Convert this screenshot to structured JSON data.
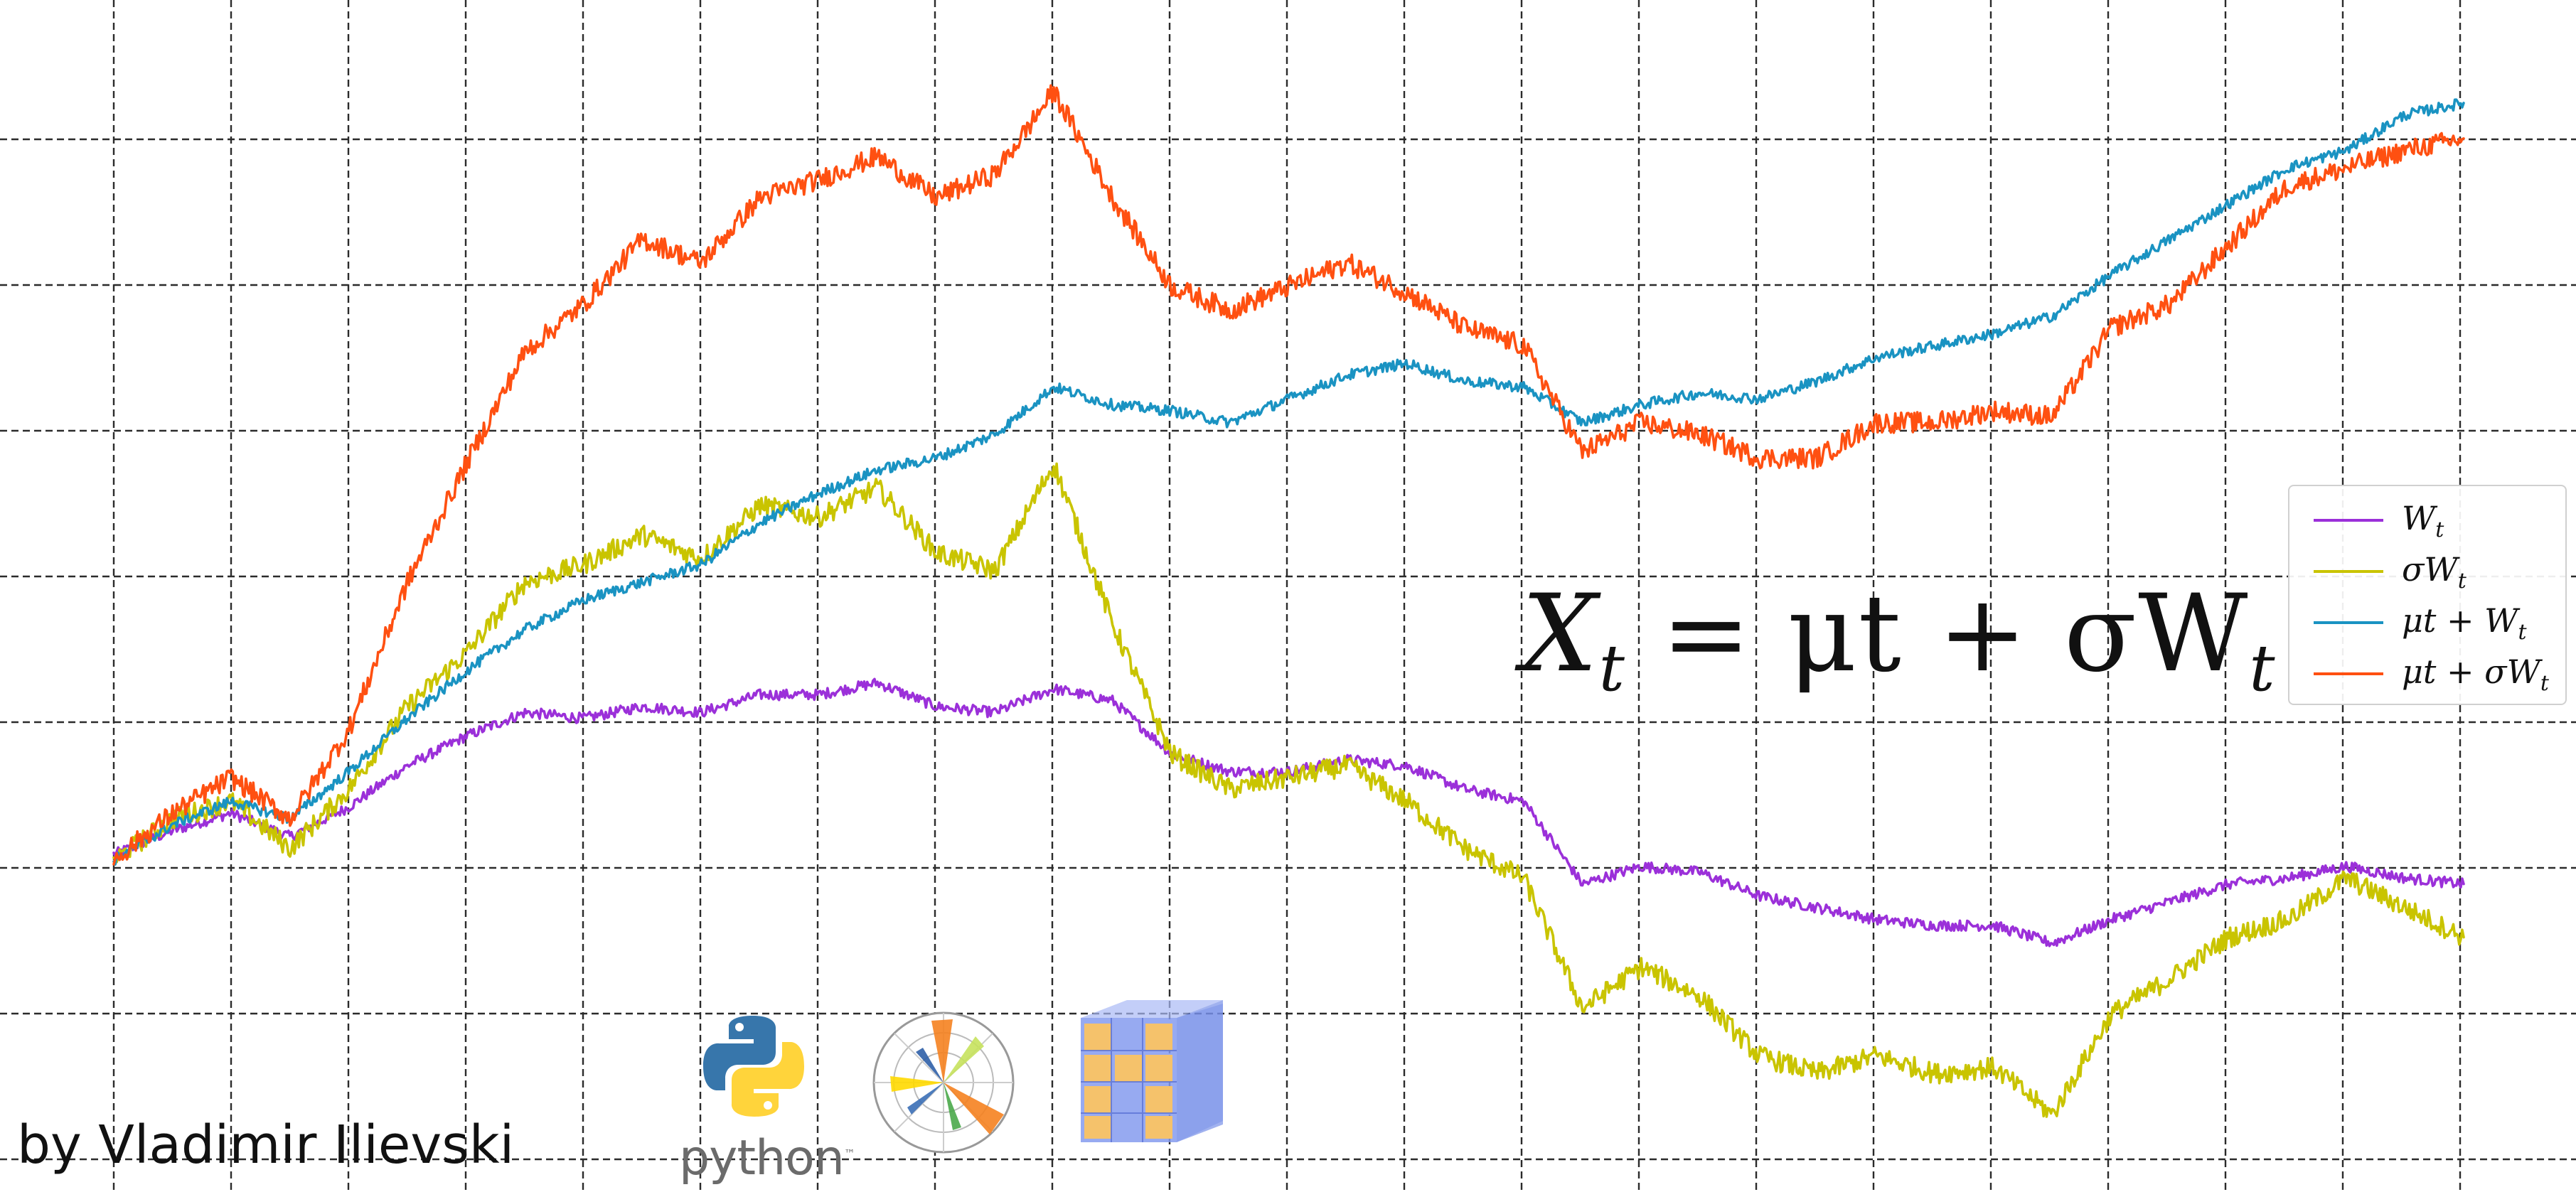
{
  "chart_data": {
    "type": "line",
    "title": "",
    "xlabel": "",
    "ylabel": "",
    "grid": true,
    "legend_placement": "right",
    "x": [
      0,
      0.025,
      0.05,
      0.075,
      0.1,
      0.125,
      0.15,
      0.175,
      0.2,
      0.225,
      0.25,
      0.275,
      0.3,
      0.325,
      0.35,
      0.375,
      0.4,
      0.425,
      0.45,
      0.475,
      0.5,
      0.525,
      0.55,
      0.575,
      0.6,
      0.625,
      0.65,
      0.675,
      0.7,
      0.725,
      0.75,
      0.775,
      0.8,
      0.825,
      0.85,
      0.875,
      0.9,
      0.925,
      0.95,
      0.975,
      1
    ],
    "series": [
      {
        "name": "W_t",
        "color": "#9b30d9",
        "values": [
          -0.01,
          0.03,
          0.06,
          0.02,
          0.07,
          0.14,
          0.19,
          0.23,
          0.22,
          0.24,
          0.23,
          0.26,
          0.26,
          0.28,
          0.24,
          0.23,
          0.27,
          0.25,
          0.16,
          0.13,
          0.13,
          0.15,
          0.14,
          0.1,
          0.08,
          -0.06,
          -0.03,
          -0.04,
          -0.08,
          -0.1,
          -0.12,
          -0.13,
          -0.13,
          -0.16,
          -0.12,
          -0.09,
          -0.06,
          -0.05,
          -0.03,
          -0.05,
          -0.06
        ]
      },
      {
        "name": "σW_t",
        "color": "#c9c400",
        "values": [
          -0.02,
          0.05,
          0.08,
          0.0,
          0.1,
          0.24,
          0.33,
          0.45,
          0.48,
          0.53,
          0.49,
          0.58,
          0.56,
          0.61,
          0.5,
          0.47,
          0.65,
          0.38,
          0.16,
          0.1,
          0.12,
          0.14,
          0.08,
          0.0,
          -0.05,
          -0.27,
          -0.2,
          -0.25,
          -0.35,
          -0.38,
          -0.35,
          -0.38,
          -0.37,
          -0.45,
          -0.28,
          -0.22,
          -0.15,
          -0.12,
          -0.05,
          -0.1,
          -0.15
        ]
      },
      {
        "name": "μt + W_t",
        "color": "#1a93c2",
        "values": [
          -0.02,
          0.04,
          0.08,
          0.05,
          0.13,
          0.22,
          0.3,
          0.37,
          0.42,
          0.45,
          0.48,
          0.55,
          0.6,
          0.64,
          0.66,
          0.7,
          0.78,
          0.75,
          0.74,
          0.72,
          0.76,
          0.8,
          0.82,
          0.79,
          0.78,
          0.72,
          0.75,
          0.77,
          0.76,
          0.79,
          0.83,
          0.85,
          0.87,
          0.9,
          0.97,
          1.03,
          1.09,
          1.15,
          1.18,
          1.24,
          1.26
        ]
      },
      {
        "name": "μt + σW_t",
        "color": "#ff5011",
        "values": [
          -0.02,
          0.06,
          0.12,
          0.05,
          0.2,
          0.45,
          0.65,
          0.84,
          0.92,
          1.03,
          0.99,
          1.1,
          1.13,
          1.17,
          1.1,
          1.14,
          1.28,
          1.1,
          0.95,
          0.91,
          0.95,
          0.99,
          0.94,
          0.88,
          0.85,
          0.67,
          0.72,
          0.7,
          0.66,
          0.66,
          0.72,
          0.72,
          0.74,
          0.73,
          0.88,
          0.92,
          1.02,
          1.12,
          1.15,
          1.18,
          1.2
        ]
      }
    ]
  },
  "legend": {
    "items": [
      {
        "name": "W",
        "sub": "t",
        "color": "#9b30d9"
      },
      {
        "name": "σW",
        "sub": "t",
        "color": "#c9c400"
      },
      {
        "name": "μt + W",
        "sub": "t",
        "color": "#1a93c2"
      },
      {
        "name": "μt + σW",
        "sub": "t",
        "color": "#ff5011"
      }
    ]
  },
  "equation": {
    "lhs": "X",
    "lhs_sub": "t",
    "rhs": "= μt + σW",
    "rhs_sub": "t"
  },
  "author": "by Vladimir Ilievski",
  "logos": {
    "python_text": "python",
    "python_tm": "™",
    "python_icon": "python-logo-icon",
    "matplotlib_icon": "matplotlib-logo-icon",
    "numpy_icon": "numpy-logo-icon"
  }
}
